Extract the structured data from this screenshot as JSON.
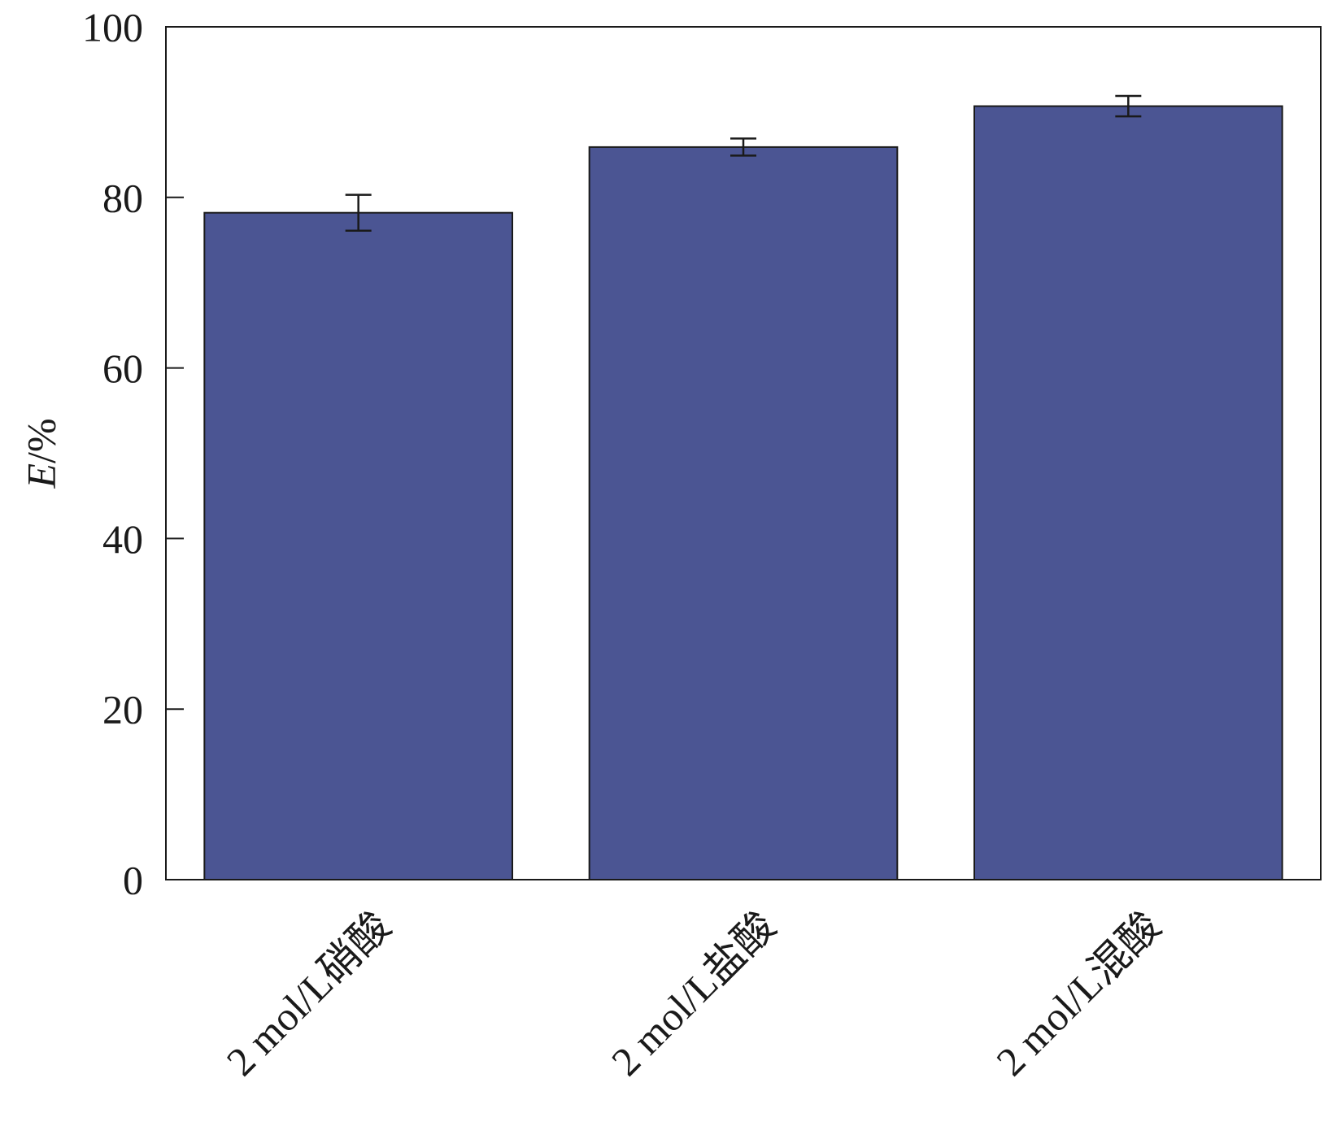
{
  "chart_data": {
    "type": "bar",
    "categories": [
      "2 mol/L硝酸",
      "2 mol/L盐酸",
      "2 mol/L混酸"
    ],
    "values": [
      78.2,
      85.9,
      90.7
    ],
    "error": [
      2.1,
      1.0,
      1.2
    ],
    "ylabel_italic": "E",
    "ylabel_rest": "/%",
    "ylim": [
      0,
      100
    ],
    "yticks": [
      0,
      20,
      40,
      60,
      80,
      100
    ],
    "bar_color": "#4b5593",
    "grid": false,
    "legend": "none"
  }
}
